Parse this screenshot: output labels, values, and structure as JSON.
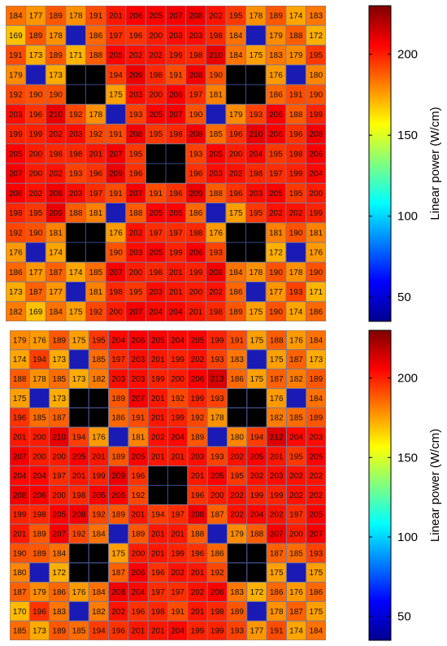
{
  "chart_data": [
    {
      "type": "heatmap",
      "colorbar": {
        "label": "Linear power (W/cm)",
        "ticks": [
          50,
          100,
          150,
          200
        ],
        "range": [
          35,
          230
        ],
        "colormap": "jet"
      },
      "rows": [
        [
          184,
          177,
          189,
          178,
          191,
          201,
          206,
          205,
          207,
          208,
          202,
          195,
          178,
          189,
          174,
          183
        ],
        [
          169,
          189,
          178,
          null,
          186,
          197,
          196,
          200,
          203,
          203,
          198,
          184,
          null,
          179,
          188,
          172
        ],
        [
          191,
          173,
          189,
          171,
          188,
          205,
          202,
          202,
          199,
          198,
          210,
          184,
          175,
          183,
          179,
          195
        ],
        [
          179,
          null,
          173,
          "X",
          "X",
          194,
          209,
          198,
          191,
          208,
          190,
          "X",
          "X",
          176,
          null,
          180
        ],
        [
          192,
          190,
          190,
          "X",
          "X",
          175,
          203,
          200,
          206,
          197,
          181,
          "X",
          "X",
          186,
          191,
          190
        ],
        [
          203,
          196,
          210,
          192,
          178,
          null,
          193,
          205,
          207,
          190,
          null,
          179,
          193,
          206,
          188,
          199
        ],
        [
          199,
          199,
          202,
          203,
          192,
          191,
          208,
          195,
          198,
          208,
          185,
          196,
          210,
          206,
          196,
          208
        ],
        [
          205,
          200,
          198,
          198,
          201,
          207,
          195,
          "X",
          "X",
          193,
          205,
          200,
          204,
          195,
          198,
          206
        ],
        [
          207,
          200,
          202,
          193,
          196,
          209,
          196,
          "X",
          "X",
          196,
          203,
          202,
          198,
          197,
          199,
          204
        ],
        [
          206,
          202,
          208,
          203,
          197,
          191,
          207,
          191,
          196,
          209,
          188,
          196,
          203,
          205,
          195,
          200
        ],
        [
          198,
          195,
          209,
          188,
          181,
          null,
          188,
          205,
          205,
          186,
          null,
          175,
          195,
          202,
          202,
          199
        ],
        [
          192,
          190,
          181,
          "X",
          "X",
          176,
          202,
          197,
          197,
          198,
          176,
          "X",
          "X",
          181,
          190,
          181
        ],
        [
          176,
          null,
          174,
          "X",
          "X",
          190,
          203,
          205,
          199,
          206,
          193,
          "X",
          "X",
          172,
          null,
          176
        ],
        [
          186,
          177,
          187,
          174,
          185,
          207,
          200,
          198,
          201,
          199,
          208,
          184,
          178,
          190,
          178,
          190
        ],
        [
          173,
          187,
          177,
          null,
          181,
          198,
          195,
          203,
          201,
          200,
          202,
          186,
          null,
          177,
          193,
          171
        ],
        [
          182,
          169,
          184,
          175,
          192,
          200,
          207,
          204,
          204,
          201,
          198,
          189,
          175,
          190,
          174,
          186
        ]
      ]
    },
    {
      "type": "heatmap",
      "colorbar": {
        "label": "Linear power (W/cm)",
        "ticks": [
          50,
          100,
          150,
          200
        ],
        "range": [
          35,
          230
        ],
        "colormap": "jet"
      },
      "rows": [
        [
          179,
          176,
          189,
          175,
          195,
          204,
          206,
          205,
          204,
          205,
          199,
          191,
          175,
          188,
          176,
          184
        ],
        [
          174,
          194,
          173,
          null,
          185,
          197,
          203,
          201,
          199,
          202,
          193,
          183,
          null,
          175,
          187,
          173
        ],
        [
          188,
          178,
          185,
          173,
          182,
          203,
          203,
          199,
          200,
          206,
          213,
          186,
          175,
          187,
          182,
          189
        ],
        [
          175,
          null,
          173,
          "X",
          "X",
          189,
          207,
          201,
          192,
          199,
          193,
          "X",
          "X",
          176,
          null,
          184
        ],
        [
          196,
          185,
          187,
          "X",
          "X",
          186,
          191,
          201,
          199,
          192,
          178,
          "X",
          "X",
          182,
          185,
          189
        ],
        [
          201,
          200,
          210,
          194,
          176,
          null,
          181,
          202,
          204,
          189,
          null,
          180,
          194,
          212,
          204,
          203
        ],
        [
          207,
          200,
          200,
          205,
          201,
          189,
          205,
          201,
          201,
          203,
          193,
          202,
          205,
          201,
          195,
          205
        ],
        [
          204,
          204,
          197,
          201,
          199,
          209,
          196,
          "X",
          "X",
          201,
          205,
          195,
          202,
          203,
          202,
          202
        ],
        [
          208,
          206,
          200,
          198,
          205,
          206,
          192,
          "X",
          "X",
          196,
          200,
          202,
          199,
          199,
          202,
          202
        ],
        [
          199,
          198,
          205,
          208,
          192,
          189,
          201,
          194,
          197,
          208,
          187,
          202,
          204,
          202,
          197,
          205
        ],
        [
          201,
          189,
          207,
          192,
          184,
          null,
          189,
          201,
          201,
          188,
          null,
          179,
          188,
          207,
          200,
          207
        ],
        [
          190,
          189,
          184,
          "X",
          "X",
          175,
          200,
          201,
          199,
          196,
          186,
          "X",
          "X",
          187,
          185,
          193
        ],
        [
          180,
          null,
          172,
          "X",
          "X",
          187,
          206,
          196,
          202,
          201,
          192,
          "X",
          "X",
          175,
          null,
          175
        ],
        [
          187,
          179,
          186,
          176,
          184,
          208,
          204,
          197,
          197,
          202,
          206,
          183,
          172,
          186,
          176,
          186
        ],
        [
          170,
          196,
          183,
          null,
          182,
          202,
          196,
          198,
          191,
          201,
          198,
          189,
          null,
          178,
          187,
          175
        ],
        [
          185,
          173,
          189,
          185,
          194,
          196,
          201,
          201,
          204,
          199,
          199,
          193,
          177,
          191,
          174,
          184
        ]
      ]
    }
  ],
  "colors": {
    "low_cell": "#1a1ab4",
    "guide_tube": "#000000",
    "grid_line": "#7a7a9a",
    "guide_line": "#3b4a8a"
  }
}
